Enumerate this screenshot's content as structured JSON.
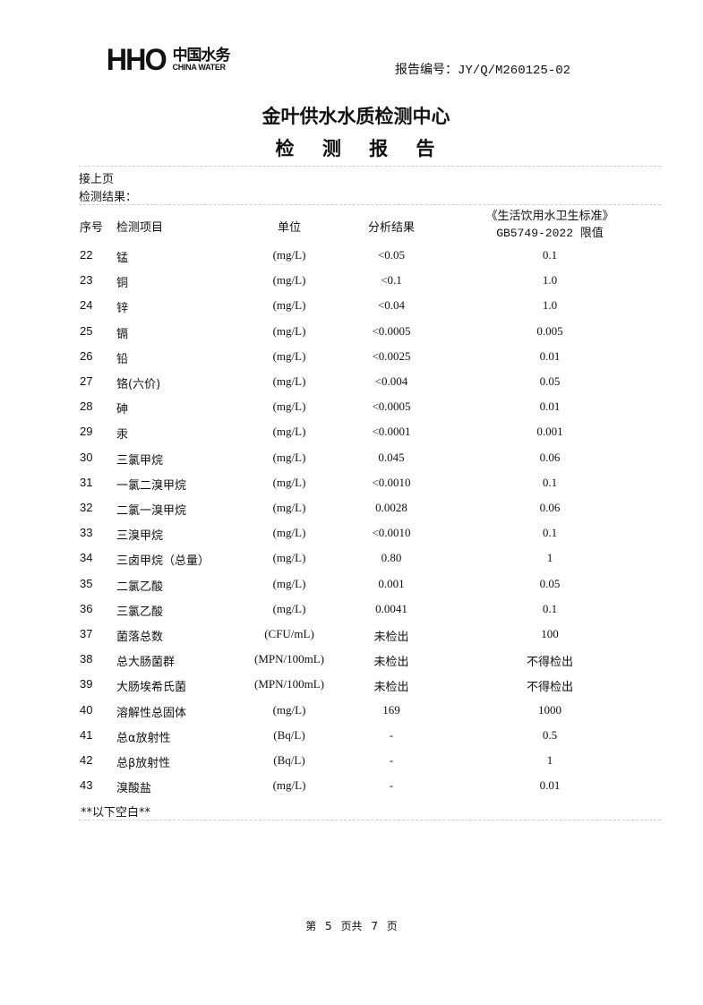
{
  "header": {
    "logo": {
      "mark": "HHO",
      "cn": "中国水务",
      "en": "CHINA WATER"
    },
    "report_no_label": "报告编号：",
    "report_no": "JY/Q/M260125-02",
    "org": "金叶供水水质检测中心",
    "doc_title": "检 测 报 告"
  },
  "intro": {
    "continued": "接上页",
    "results_label": "检测结果："
  },
  "table": {
    "columns": {
      "no": "序号",
      "item": "检测项目",
      "unit": "单位",
      "result": "分析结果",
      "limit_line1": "《生活饮用水卫生标准》",
      "limit_line2": "GB5749-2022 限值"
    },
    "rows": [
      {
        "no": "22",
        "item": "锰",
        "unit": "(mg/L)",
        "result": "<0.05",
        "limit": "0.1"
      },
      {
        "no": "23",
        "item": "铜",
        "unit": "(mg/L)",
        "result": "<0.1",
        "limit": "1.0"
      },
      {
        "no": "24",
        "item": "锌",
        "unit": "(mg/L)",
        "result": "<0.04",
        "limit": "1.0"
      },
      {
        "no": "25",
        "item": "镉",
        "unit": "(mg/L)",
        "result": "<0.0005",
        "limit": "0.005"
      },
      {
        "no": "26",
        "item": "铅",
        "unit": "(mg/L)",
        "result": "<0.0025",
        "limit": "0.01"
      },
      {
        "no": "27",
        "item": "铬(六价)",
        "unit": "(mg/L)",
        "result": "<0.004",
        "limit": "0.05"
      },
      {
        "no": "28",
        "item": "砷",
        "unit": "(mg/L)",
        "result": "<0.0005",
        "limit": "0.01"
      },
      {
        "no": "29",
        "item": "汞",
        "unit": "(mg/L)",
        "result": "<0.0001",
        "limit": "0.001"
      },
      {
        "no": "30",
        "item": "三氯甲烷",
        "unit": "(mg/L)",
        "result": "0.045",
        "limit": "0.06"
      },
      {
        "no": "31",
        "item": "一氯二溴甲烷",
        "unit": "(mg/L)",
        "result": "<0.0010",
        "limit": "0.1"
      },
      {
        "no": "32",
        "item": "二氯一溴甲烷",
        "unit": "(mg/L)",
        "result": "0.0028",
        "limit": "0.06"
      },
      {
        "no": "33",
        "item": "三溴甲烷",
        "unit": "(mg/L)",
        "result": "<0.0010",
        "limit": "0.1"
      },
      {
        "no": "34",
        "item": "三卤甲烷（总量）",
        "unit": "(mg/L)",
        "result": "0.80",
        "limit": "1"
      },
      {
        "no": "35",
        "item": "二氯乙酸",
        "unit": "(mg/L)",
        "result": "0.001",
        "limit": "0.05"
      },
      {
        "no": "36",
        "item": "三氯乙酸",
        "unit": "(mg/L)",
        "result": "0.0041",
        "limit": "0.1"
      },
      {
        "no": "37",
        "item": "菌落总数",
        "unit": "(CFU/mL)",
        "result": "未检出",
        "limit": "100"
      },
      {
        "no": "38",
        "item": "总大肠菌群",
        "unit": "(MPN/100mL)",
        "result": "未检出",
        "limit": "不得检出"
      },
      {
        "no": "39",
        "item": "大肠埃希氏菌",
        "unit": "(MPN/100mL)",
        "result": "未检出",
        "limit": "不得检出"
      },
      {
        "no": "40",
        "item": "溶解性总固体",
        "unit": "(mg/L)",
        "result": "169",
        "limit": "1000"
      },
      {
        "no": "41",
        "item": "总α放射性",
        "unit": "(Bq/L)",
        "result": "-",
        "limit": "0.5"
      },
      {
        "no": "42",
        "item": "总β放射性",
        "unit": "(Bq/L)",
        "result": "-",
        "limit": "1"
      },
      {
        "no": "43",
        "item": "溴酸盐",
        "unit": "(mg/L)",
        "result": "-",
        "limit": "0.01"
      }
    ],
    "end_note": "**以下空白**"
  },
  "footer": {
    "page_text": "第 5 页共 7 页"
  }
}
